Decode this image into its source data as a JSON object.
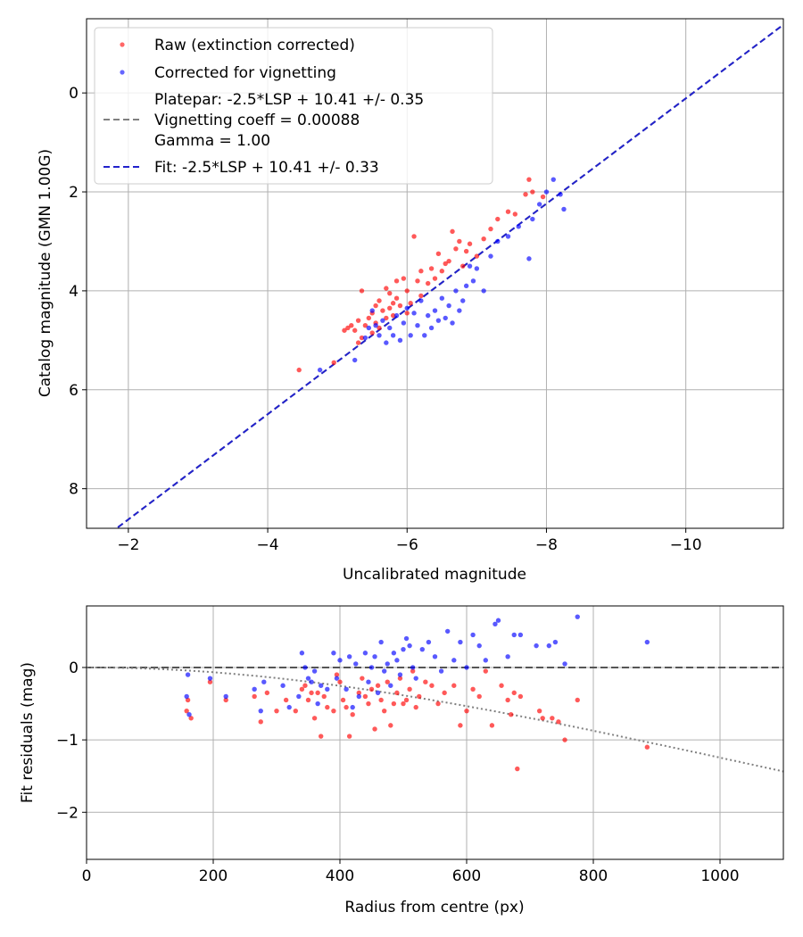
{
  "colors": {
    "raw": "#ff0000",
    "corrected": "#0000ff",
    "platepar_line": "#808080",
    "fit_line": "#2222cc",
    "grid": "#b0b0b0",
    "zero_line": "#555555",
    "vignetting_curve": "#808080"
  },
  "chart_data": [
    {
      "id": "top",
      "type": "scatter",
      "xlabel": "Uncalibrated magnitude",
      "ylabel": "Catalog magnitude (GMN 1.00G)",
      "xlim": [
        -1.4,
        -11.4
      ],
      "ylim": [
        8.8,
        -1.5
      ],
      "xticks": [
        -2,
        -4,
        -6,
        -8,
        -10
      ],
      "xtick_labels": [
        "−2",
        "−4",
        "−6",
        "−8",
        "−10"
      ],
      "yticks": [
        0,
        2,
        4,
        6,
        8
      ],
      "ytick_labels": [
        "0",
        "2",
        "4",
        "6",
        "8"
      ],
      "legend": {
        "position": "upper-left",
        "raw_label": "Raw (extinction corrected)",
        "corrected_label": "Corrected for vignetting",
        "platepar_lines": [
          "Platepar: -2.5*LSP + 10.41 +/- 0.35",
          "Vignetting coeff = 0.00088",
          "Gamma = 1.00"
        ],
        "fit_label": "Fit: -2.5*LSP + 10.41 +/- 0.33"
      },
      "lines": [
        {
          "name": "platepar",
          "x": [
            -1.4,
            -11.4
          ],
          "y": [
            9.26,
            -1.38
          ]
        },
        {
          "name": "fit",
          "x": [
            -1.4,
            -11.4
          ],
          "y": [
            9.26,
            -1.38
          ]
        }
      ],
      "series": [
        {
          "name": "Raw (extinction corrected)",
          "points": [
            [
              -4.45,
              5.6
            ],
            [
              -4.95,
              5.45
            ],
            [
              -5.1,
              4.8
            ],
            [
              -5.15,
              4.75
            ],
            [
              -5.2,
              4.7
            ],
            [
              -5.25,
              4.8
            ],
            [
              -5.3,
              4.6
            ],
            [
              -5.3,
              5.05
            ],
            [
              -5.35,
              4.0
            ],
            [
              -5.35,
              4.95
            ],
            [
              -5.4,
              4.7
            ],
            [
              -5.45,
              4.55
            ],
            [
              -5.5,
              4.45
            ],
            [
              -5.5,
              4.85
            ],
            [
              -5.55,
              4.3
            ],
            [
              -5.55,
              4.65
            ],
            [
              -5.6,
              4.2
            ],
            [
              -5.6,
              4.75
            ],
            [
              -5.65,
              4.4
            ],
            [
              -5.7,
              3.95
            ],
            [
              -5.7,
              4.55
            ],
            [
              -5.75,
              4.05
            ],
            [
              -5.75,
              4.35
            ],
            [
              -5.8,
              4.25
            ],
            [
              -5.8,
              4.5
            ],
            [
              -5.85,
              3.8
            ],
            [
              -5.85,
              4.15
            ],
            [
              -5.9,
              4.3
            ],
            [
              -5.95,
              3.75
            ],
            [
              -6.0,
              4.0
            ],
            [
              -6.0,
              4.45
            ],
            [
              -6.05,
              4.25
            ],
            [
              -6.1,
              2.9
            ],
            [
              -6.15,
              3.8
            ],
            [
              -6.2,
              3.6
            ],
            [
              -6.2,
              4.1
            ],
            [
              -6.3,
              3.85
            ],
            [
              -6.35,
              3.55
            ],
            [
              -6.4,
              3.75
            ],
            [
              -6.45,
              3.25
            ],
            [
              -6.5,
              3.6
            ],
            [
              -6.55,
              3.45
            ],
            [
              -6.6,
              3.4
            ],
            [
              -6.65,
              2.8
            ],
            [
              -6.7,
              3.15
            ],
            [
              -6.75,
              3.0
            ],
            [
              -6.8,
              3.5
            ],
            [
              -6.85,
              3.2
            ],
            [
              -6.9,
              3.05
            ],
            [
              -7.0,
              3.3
            ],
            [
              -7.1,
              2.95
            ],
            [
              -7.2,
              2.75
            ],
            [
              -7.3,
              2.55
            ],
            [
              -7.45,
              2.4
            ],
            [
              -7.55,
              2.45
            ],
            [
              -7.7,
              2.05
            ],
            [
              -7.75,
              1.75
            ],
            [
              -7.8,
              2.0
            ],
            [
              -7.95,
              2.1
            ]
          ]
        },
        {
          "name": "Corrected for vignetting",
          "points": [
            [
              -4.75,
              5.6
            ],
            [
              -5.25,
              5.4
            ],
            [
              -5.4,
              4.95
            ],
            [
              -5.45,
              4.75
            ],
            [
              -5.5,
              4.4
            ],
            [
              -5.55,
              4.7
            ],
            [
              -5.6,
              4.9
            ],
            [
              -5.65,
              4.6
            ],
            [
              -5.7,
              5.05
            ],
            [
              -5.75,
              4.75
            ],
            [
              -5.8,
              4.9
            ],
            [
              -5.85,
              4.5
            ],
            [
              -5.9,
              5.0
            ],
            [
              -5.95,
              4.65
            ],
            [
              -6.0,
              4.35
            ],
            [
              -6.05,
              4.9
            ],
            [
              -6.1,
              4.45
            ],
            [
              -6.15,
              4.7
            ],
            [
              -6.2,
              4.2
            ],
            [
              -6.25,
              4.9
            ],
            [
              -6.3,
              4.5
            ],
            [
              -6.35,
              4.75
            ],
            [
              -6.4,
              4.4
            ],
            [
              -6.45,
              4.6
            ],
            [
              -6.5,
              4.15
            ],
            [
              -6.55,
              4.55
            ],
            [
              -6.6,
              4.3
            ],
            [
              -6.65,
              4.65
            ],
            [
              -6.7,
              4.0
            ],
            [
              -6.75,
              4.4
            ],
            [
              -6.8,
              4.2
            ],
            [
              -6.85,
              3.9
            ],
            [
              -6.9,
              3.5
            ],
            [
              -6.95,
              3.8
            ],
            [
              -7.0,
              3.55
            ],
            [
              -7.1,
              4.0
            ],
            [
              -7.2,
              3.3
            ],
            [
              -7.3,
              3.0
            ],
            [
              -7.45,
              2.9
            ],
            [
              -7.6,
              2.7
            ],
            [
              -7.75,
              3.35
            ],
            [
              -7.8,
              2.55
            ],
            [
              -7.9,
              2.25
            ],
            [
              -8.0,
              2.0
            ],
            [
              -8.1,
              1.75
            ],
            [
              -8.2,
              2.05
            ],
            [
              -8.25,
              2.35
            ]
          ]
        }
      ]
    },
    {
      "id": "bottom",
      "type": "scatter",
      "xlabel": "Radius from centre (px)",
      "ylabel": "Fit residuals (mag)",
      "xlim": [
        0,
        1100
      ],
      "ylim": [
        -2.65,
        0.85
      ],
      "xticks": [
        0,
        200,
        400,
        600,
        800,
        1000
      ],
      "xtick_labels": [
        "0",
        "200",
        "400",
        "600",
        "800",
        "1000"
      ],
      "yticks": [
        0,
        -1,
        -2
      ],
      "ytick_labels": [
        "0",
        "−1",
        "−2"
      ],
      "vignetting_coeff": 0.00088,
      "series": [
        {
          "name": "Raw (extinction corrected)",
          "points": [
            [
              158,
              -0.6
            ],
            [
              160,
              -0.45
            ],
            [
              165,
              -0.7
            ],
            [
              195,
              -0.2
            ],
            [
              220,
              -0.45
            ],
            [
              265,
              -0.4
            ],
            [
              275,
              -0.75
            ],
            [
              285,
              -0.35
            ],
            [
              300,
              -0.6
            ],
            [
              315,
              -0.45
            ],
            [
              330,
              -0.6
            ],
            [
              340,
              -0.3
            ],
            [
              345,
              -0.25
            ],
            [
              350,
              -0.45
            ],
            [
              355,
              -0.35
            ],
            [
              360,
              -0.7
            ],
            [
              365,
              -0.35
            ],
            [
              370,
              -0.95
            ],
            [
              375,
              -0.4
            ],
            [
              380,
              -0.55
            ],
            [
              390,
              -0.6
            ],
            [
              395,
              -0.1
            ],
            [
              400,
              -0.2
            ],
            [
              405,
              -0.45
            ],
            [
              410,
              -0.55
            ],
            [
              415,
              -0.95
            ],
            [
              420,
              -0.65
            ],
            [
              430,
              -0.35
            ],
            [
              435,
              -0.15
            ],
            [
              440,
              -0.4
            ],
            [
              445,
              -0.5
            ],
            [
              450,
              -0.3
            ],
            [
              455,
              -0.85
            ],
            [
              460,
              -0.25
            ],
            [
              465,
              -0.45
            ],
            [
              470,
              -0.6
            ],
            [
              475,
              -0.2
            ],
            [
              480,
              -0.8
            ],
            [
              485,
              -0.5
            ],
            [
              490,
              -0.35
            ],
            [
              495,
              -0.15
            ],
            [
              500,
              -0.5
            ],
            [
              505,
              -0.45
            ],
            [
              510,
              -0.3
            ],
            [
              515,
              -0.05
            ],
            [
              520,
              -0.55
            ],
            [
              525,
              -0.4
            ],
            [
              535,
              -0.2
            ],
            [
              545,
              -0.25
            ],
            [
              555,
              -0.5
            ],
            [
              565,
              -0.35
            ],
            [
              580,
              -0.25
            ],
            [
              590,
              -0.8
            ],
            [
              600,
              -0.6
            ],
            [
              610,
              -0.3
            ],
            [
              620,
              -0.4
            ],
            [
              630,
              -0.05
            ],
            [
              640,
              -0.8
            ],
            [
              655,
              -0.25
            ],
            [
              665,
              -0.45
            ],
            [
              670,
              -0.65
            ],
            [
              675,
              -0.35
            ],
            [
              680,
              -1.4
            ],
            [
              685,
              -0.4
            ],
            [
              715,
              -0.6
            ],
            [
              720,
              -0.7
            ],
            [
              735,
              -0.7
            ],
            [
              745,
              -0.75
            ],
            [
              755,
              -1.0
            ],
            [
              775,
              -0.45
            ],
            [
              885,
              -1.1
            ]
          ]
        },
        {
          "name": "Corrected for vignetting",
          "points": [
            [
              158,
              -0.4
            ],
            [
              160,
              -0.1
            ],
            [
              162,
              -0.65
            ],
            [
              195,
              -0.15
            ],
            [
              220,
              -0.4
            ],
            [
              265,
              -0.3
            ],
            [
              275,
              -0.6
            ],
            [
              280,
              -0.2
            ],
            [
              310,
              -0.25
            ],
            [
              320,
              -0.55
            ],
            [
              335,
              -0.4
            ],
            [
              340,
              0.2
            ],
            [
              345,
              0.0
            ],
            [
              350,
              -0.15
            ],
            [
              355,
              -0.2
            ],
            [
              360,
              -0.05
            ],
            [
              365,
              -0.5
            ],
            [
              370,
              -0.25
            ],
            [
              380,
              -0.3
            ],
            [
              390,
              0.2
            ],
            [
              395,
              -0.15
            ],
            [
              400,
              0.1
            ],
            [
              410,
              -0.3
            ],
            [
              415,
              0.15
            ],
            [
              420,
              -0.55
            ],
            [
              425,
              0.05
            ],
            [
              430,
              -0.4
            ],
            [
              440,
              0.2
            ],
            [
              445,
              -0.2
            ],
            [
              450,
              0.0
            ],
            [
              455,
              0.15
            ],
            [
              460,
              -0.35
            ],
            [
              465,
              0.35
            ],
            [
              470,
              -0.05
            ],
            [
              475,
              0.05
            ],
            [
              480,
              -0.25
            ],
            [
              485,
              0.2
            ],
            [
              490,
              0.1
            ],
            [
              495,
              -0.1
            ],
            [
              500,
              0.25
            ],
            [
              505,
              0.4
            ],
            [
              510,
              0.3
            ],
            [
              515,
              0.0
            ],
            [
              520,
              -0.15
            ],
            [
              530,
              0.25
            ],
            [
              540,
              0.35
            ],
            [
              550,
              0.15
            ],
            [
              560,
              -0.05
            ],
            [
              570,
              0.5
            ],
            [
              580,
              0.1
            ],
            [
              590,
              0.35
            ],
            [
              600,
              0.0
            ],
            [
              610,
              0.45
            ],
            [
              620,
              0.3
            ],
            [
              630,
              0.1
            ],
            [
              645,
              0.6
            ],
            [
              650,
              0.65
            ],
            [
              665,
              0.15
            ],
            [
              675,
              0.45
            ],
            [
              685,
              0.45
            ],
            [
              710,
              0.3
            ],
            [
              730,
              0.3
            ],
            [
              740,
              0.35
            ],
            [
              755,
              0.05
            ],
            [
              775,
              0.7
            ],
            [
              885,
              0.35
            ]
          ]
        }
      ]
    }
  ]
}
